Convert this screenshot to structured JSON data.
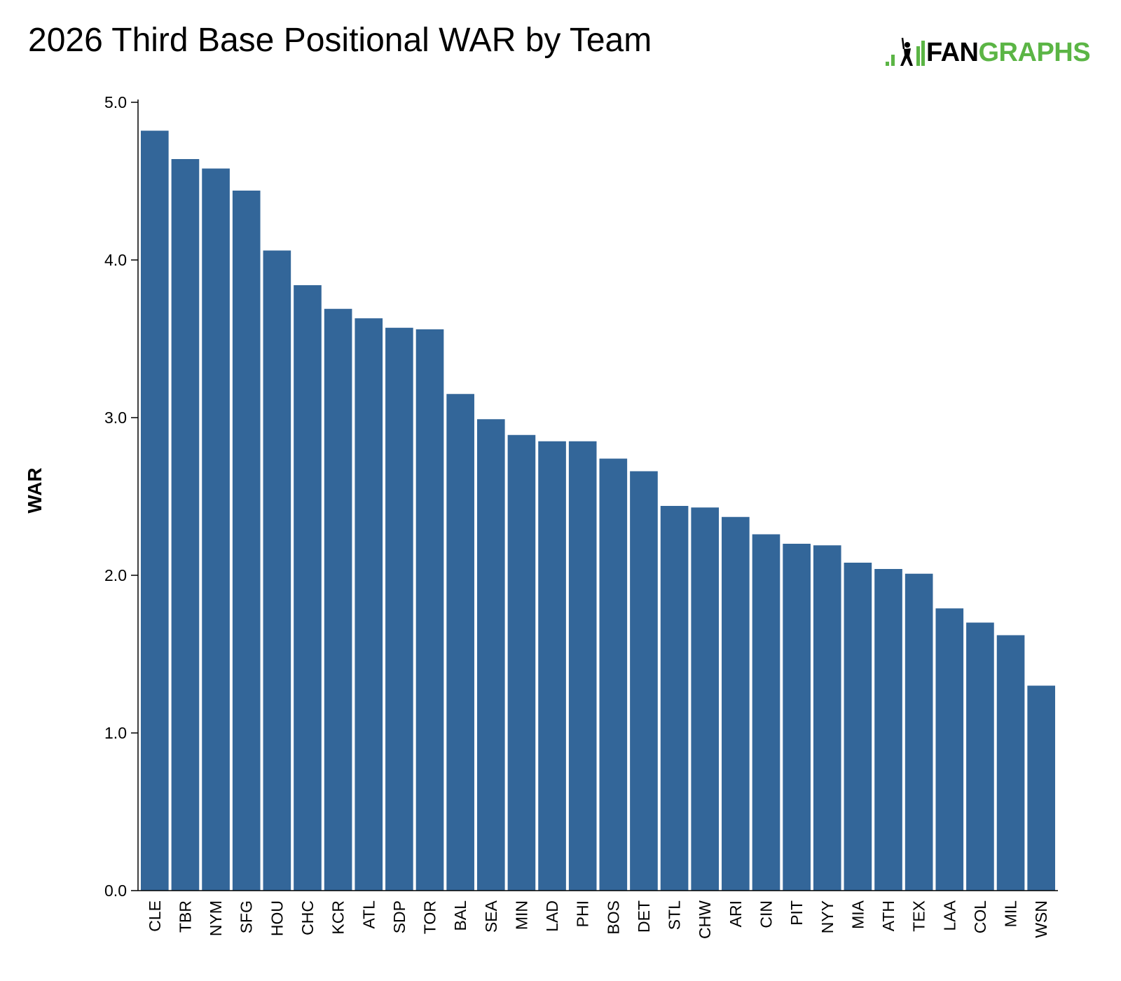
{
  "chart_data": {
    "type": "bar",
    "title": "2026 Third Base Positional WAR by Team",
    "xlabel": "",
    "ylabel": "WAR",
    "ylim": [
      0,
      5
    ],
    "yticks": [
      "0.0",
      "1.0",
      "2.0",
      "3.0",
      "4.0",
      "5.0"
    ],
    "grid": false,
    "bar_color": "#336699",
    "categories": [
      "CLE",
      "TBR",
      "NYM",
      "SFG",
      "HOU",
      "CHC",
      "KCR",
      "ATL",
      "SDP",
      "TOR",
      "BAL",
      "SEA",
      "MIN",
      "LAD",
      "PHI",
      "BOS",
      "DET",
      "STL",
      "CHW",
      "ARI",
      "CIN",
      "PIT",
      "NYY",
      "MIA",
      "ATH",
      "TEX",
      "LAA",
      "COL",
      "MIL",
      "WSN"
    ],
    "values": [
      4.82,
      4.64,
      4.58,
      4.44,
      4.06,
      3.84,
      3.69,
      3.63,
      3.57,
      3.56,
      3.15,
      2.99,
      2.89,
      2.85,
      2.85,
      2.74,
      2.66,
      2.44,
      2.43,
      2.37,
      2.26,
      2.2,
      2.19,
      2.08,
      2.04,
      2.01,
      1.79,
      1.7,
      1.62,
      1.3
    ]
  },
  "logo": {
    "part1": "FAN",
    "part2": "GRAPHS",
    "brand_green": "#5bb545",
    "icon": "batter-icon"
  }
}
